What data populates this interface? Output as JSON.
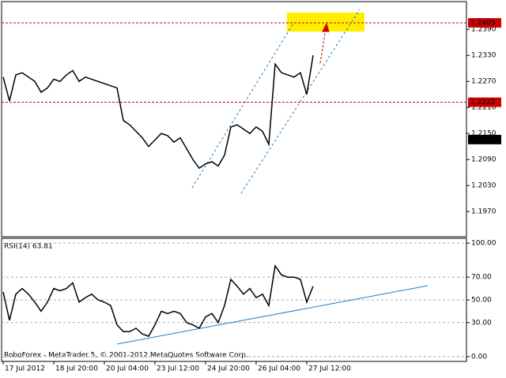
{
  "chart_data": [
    {
      "type": "line",
      "color": "#000000",
      "x": [
        0,
        2,
        4,
        6,
        8,
        10,
        12,
        14,
        16,
        18,
        20,
        22,
        24,
        26,
        28,
        30,
        32,
        34,
        36,
        38,
        40,
        42,
        44,
        46,
        48,
        50,
        52,
        54,
        56,
        58,
        60,
        62,
        64,
        66,
        68,
        70,
        72,
        74,
        76,
        78,
        80,
        82,
        84,
        86,
        88,
        90,
        92,
        94,
        96,
        98
      ],
      "values": [
        1.228,
        1.2225,
        1.2285,
        1.229,
        1.228,
        1.227,
        1.2245,
        1.2255,
        1.2275,
        1.227,
        1.2285,
        1.2295,
        1.227,
        1.228,
        1.2275,
        1.227,
        1.2265,
        1.226,
        1.2255,
        1.218,
        1.217,
        1.2155,
        1.214,
        1.212,
        1.2135,
        1.215,
        1.2145,
        1.213,
        1.214,
        1.2115,
        1.209,
        1.207,
        1.208,
        1.2085,
        1.2075,
        1.21,
        1.2165,
        1.217,
        1.216,
        1.215,
        1.2165,
        1.2155,
        1.2125,
        1.231,
        1.229,
        1.2285,
        1.228,
        1.229,
        1.224,
        1.233
      ],
      "xlim": [
        -0.5,
        146.5
      ],
      "ylim": [
        1.1912,
        1.2454
      ],
      "yticks": [
        {
          "value": 1.239,
          "label": "1.2390"
        },
        {
          "value": 1.233,
          "label": "1.2330"
        },
        {
          "value": 1.227,
          "label": "1.2270"
        },
        {
          "value": 1.221,
          "label": "1.2210"
        },
        {
          "value": 1.215,
          "label": "1.2150"
        },
        {
          "value": 1.209,
          "label": "1.2090"
        },
        {
          "value": 1.203,
          "label": "1.2030"
        },
        {
          "value": 1.197,
          "label": "1.1970"
        }
      ],
      "levels": [
        1.2405,
        1.2222
      ],
      "level_color": "#cc0000",
      "last_price": 1.2136,
      "grid": false
    },
    {
      "type": "line",
      "color": "#000000",
      "title": "RSI(14) 63.81",
      "footer": "RoboForex - MetaTrader 5, © 2001-2012 MetaQuotes Software Corp.",
      "x": [
        0,
        2,
        4,
        6,
        8,
        10,
        12,
        14,
        16,
        18,
        20,
        22,
        24,
        26,
        28,
        30,
        32,
        34,
        36,
        38,
        40,
        42,
        44,
        46,
        48,
        50,
        52,
        54,
        56,
        58,
        60,
        62,
        64,
        66,
        68,
        70,
        72,
        74,
        76,
        78,
        80,
        82,
        84,
        86,
        88,
        90,
        92,
        94,
        96,
        98
      ],
      "values": [
        57,
        32,
        55,
        60,
        55,
        48,
        40,
        48,
        60,
        58,
        60,
        65,
        48,
        52,
        55,
        50,
        48,
        45,
        28,
        22,
        22,
        25,
        20,
        18,
        28,
        40,
        38,
        40,
        38,
        30,
        28,
        25,
        35,
        38,
        30,
        45,
        68,
        62,
        55,
        60,
        52,
        55,
        45,
        80,
        72,
        70,
        70,
        68,
        48,
        62
      ],
      "xlim": [
        -0.5,
        146.5
      ],
      "ylim": [
        -4.2,
        104.2
      ],
      "yticks": [
        {
          "value": 100,
          "label": "100.00"
        },
        {
          "value": 70,
          "label": "70.00"
        },
        {
          "value": 50,
          "label": "50.00"
        },
        {
          "value": 30,
          "label": "30.00"
        },
        {
          "value": 0,
          "label": "0.00"
        }
      ],
      "xticks": [
        {
          "value": 0,
          "label": "17 Jul 2012"
        },
        {
          "value": 16,
          "label": "18 Jul 20:00"
        },
        {
          "value": 32,
          "label": "20 Jul 04:00"
        },
        {
          "value": 48,
          "label": "23 Jul 12:00"
        },
        {
          "value": 64,
          "label": "24 Jul 20:00"
        },
        {
          "value": 80,
          "label": "26 Jul 04:00"
        },
        {
          "value": 96,
          "label": "27 Jul 12:00"
        }
      ],
      "trendline": {
        "x": [
          36,
          134.25
        ],
        "values": [
          11.1,
          62.5
        ],
        "color": "#1a7fd4"
      },
      "grid": true
    }
  ]
}
